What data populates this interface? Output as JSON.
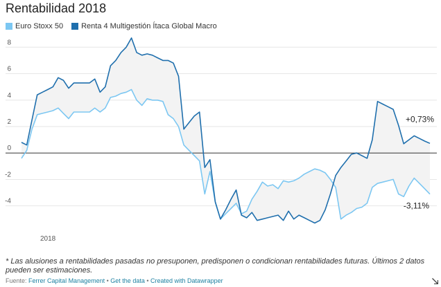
{
  "title": "Rentabilidad 2018",
  "legend": [
    {
      "name": "Euro Stoxx 50",
      "color": "#7cc7f2"
    },
    {
      "name": "Renta 4 Multigestión Ítaca Global Macro",
      "color": "#1f6fad"
    }
  ],
  "chart_data": {
    "type": "line",
    "xlabel": "",
    "ylabel": "",
    "x_tick_labels": [
      "2018"
    ],
    "y_ticks": [
      8,
      6,
      4,
      2,
      0,
      -2,
      -4
    ],
    "ylim": [
      -5.9,
      8.8
    ],
    "grid": true,
    "fill_between_series": true,
    "series": [
      {
        "name": "Euro Stoxx 50",
        "color": "#7cc7f2",
        "end_label": "-3,11%",
        "values": [
          -0.4,
          0.2,
          1.8,
          2.9,
          3.0,
          3.1,
          3.2,
          3.4,
          3.0,
          2.6,
          3.1,
          3.1,
          3.1,
          3.1,
          3.4,
          3.1,
          3.4,
          4.2,
          4.3,
          4.5,
          4.6,
          4.8,
          4.0,
          3.6,
          4.1,
          4.0,
          4.0,
          3.9,
          2.9,
          2.6,
          2.0,
          0.6,
          0.2,
          -0.2,
          -0.6,
          -3.1,
          -1.4,
          -3.7,
          -5.0,
          -4.6,
          -4.2,
          -3.8,
          -4.6,
          -4.4,
          -3.5,
          -2.9,
          -2.2,
          -2.5,
          -2.4,
          -2.7,
          -2.1,
          -2.2,
          -2.1,
          -1.9,
          -1.6,
          -1.4,
          -1.2,
          -1.3,
          -1.5,
          -2.0,
          -2.6,
          -5.0,
          -4.7,
          -4.5,
          -4.2,
          -4.1,
          -3.8,
          -2.6,
          -2.3,
          -2.2,
          -2.1,
          -2.0,
          -3.1,
          -3.3,
          -2.5,
          -1.9,
          -2.3,
          -2.7,
          -3.11
        ]
      },
      {
        "name": "Renta 4 Multigestión Ítaca Global Macro",
        "color": "#1f6fad",
        "end_label": "+0,73%",
        "values": [
          0.8,
          0.6,
          2.5,
          4.4,
          4.6,
          4.8,
          5.0,
          5.7,
          5.5,
          4.9,
          5.3,
          5.3,
          5.3,
          5.3,
          5.6,
          4.6,
          5.0,
          6.6,
          7.0,
          7.6,
          8.0,
          8.7,
          7.6,
          7.4,
          7.5,
          7.4,
          7.2,
          7.0,
          7.0,
          6.8,
          5.8,
          1.8,
          2.3,
          2.8,
          3.1,
          -1.1,
          -0.5,
          -3.7,
          -5.0,
          -4.3,
          -3.5,
          -2.8,
          -4.7,
          -4.9,
          -4.5,
          -5.1,
          -5.0,
          -4.9,
          -4.8,
          -4.7,
          -5.1,
          -4.4,
          -5.0,
          -4.7,
          -4.9,
          -5.1,
          -5.3,
          -5.1,
          -4.3,
          -3.1,
          -1.7,
          -1.1,
          -0.6,
          -0.1,
          0.0,
          -0.2,
          -0.4,
          1.0,
          3.9,
          3.7,
          3.5,
          3.3,
          2.1,
          0.7,
          1.0,
          1.3,
          1.1,
          0.9,
          0.73
        ]
      }
    ]
  },
  "note": "* Las alusiones a rentabilidades pasadas no presuponen, predisponen o condicionan rentabilidades futuras. Últimos 2 datos pueden ser estimaciones.",
  "footer": {
    "source_label": "Fuente:",
    "source": "Ferrer Capital Management",
    "separator": "•",
    "get_data": "Get the data",
    "created": "Created with Datawrapper"
  },
  "colors": {
    "grid": "#e6e6e6",
    "zero_line": "#333333",
    "fill": "#f3f3f3",
    "axis_text": "#555555"
  }
}
